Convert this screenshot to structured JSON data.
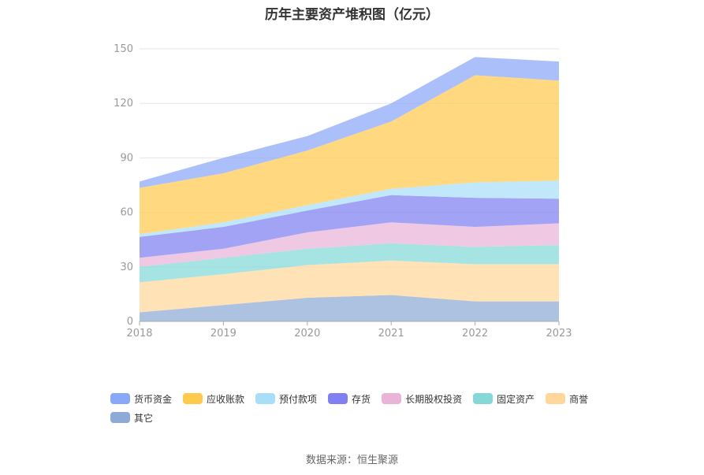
{
  "title": "历年主要资产堆积图（亿元）",
  "source": "数据来源：恒生聚源",
  "chart_data": {
    "type": "area",
    "stacked": true,
    "title": "历年主要资产堆积图（亿元）",
    "categories": [
      "2018",
      "2019",
      "2020",
      "2021",
      "2022",
      "2023"
    ],
    "ylim": [
      0,
      150
    ],
    "yticks": [
      0,
      30,
      60,
      90,
      120,
      150
    ],
    "grid": true,
    "legend_position": "bottom",
    "series": [
      {
        "name": "其它",
        "color": "#8eaad6",
        "values": [
          5,
          9,
          13,
          14.5,
          11,
          11
        ]
      },
      {
        "name": "商誉",
        "color": "#ffd79a",
        "values": [
          16.5,
          17,
          18,
          19,
          20.5,
          20.5
        ]
      },
      {
        "name": "固定资产",
        "color": "#84d8d8",
        "values": [
          8.5,
          9,
          9,
          9.5,
          9.5,
          10.5
        ]
      },
      {
        "name": "长期股权投资",
        "color": "#e9b4d8",
        "values": [
          5,
          5,
          9,
          11.5,
          11,
          12
        ]
      },
      {
        "name": "存货",
        "color": "#8080f2",
        "values": [
          11.5,
          12,
          12,
          15,
          16,
          13.5
        ]
      },
      {
        "name": "预付款项",
        "color": "#a9def8",
        "values": [
          1.5,
          2.5,
          3,
          3.5,
          8.5,
          10
        ]
      },
      {
        "name": "应收账款",
        "color": "#ffc94e",
        "values": [
          25.5,
          27,
          30,
          37,
          59,
          55
        ]
      },
      {
        "name": "货币资金",
        "color": "#8aa8f8",
        "values": [
          3.5,
          8.5,
          8,
          10,
          10,
          10.5
        ]
      }
    ],
    "legend_order": [
      "货币资金",
      "应收账款",
      "预付款项",
      "存货",
      "长期股权投资",
      "固定资产",
      "商誉",
      "其它"
    ]
  }
}
